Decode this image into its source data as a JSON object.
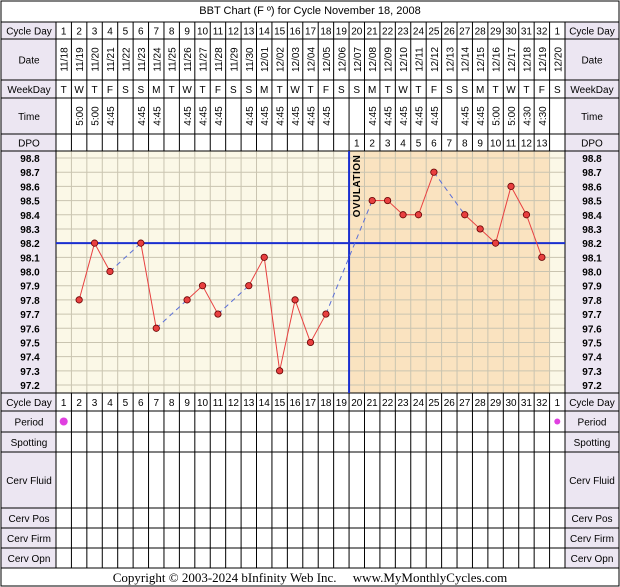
{
  "title": "BBT Chart (F º) for Cycle November 18, 2008",
  "copyright": "Copyright © 2003-2024 bInfinity Web Inc.",
  "website": "www.MyMonthlyCycles.com",
  "row_labels": {
    "cycle_day": "Cycle Day",
    "date": "Date",
    "weekday": "WeekDay",
    "time": "Time",
    "dpo": "DPO",
    "period": "Period",
    "spotting": "Spotting",
    "cerv_fluid": "Cerv Fluid",
    "cerv_pos": "Cerv Pos",
    "cerv_firm": "Cerv Firm",
    "cerv_opn": "Cerv Opn"
  },
  "ovulation_label": "OVULATION",
  "colors": {
    "label_bg": "#ece6f2",
    "pre_ov_bg": "#fbf8e7",
    "post_ov_bg": "#fae3c0",
    "grid": "#c9c4b0",
    "line": "#e84040",
    "dash": "#5a6fd8",
    "coverline": "#1a2fd0",
    "period_dot": "#e040e0"
  },
  "chart_data": {
    "type": "line",
    "title": "BBT Chart (F º) for Cycle November 18, 2008",
    "cycle_days": [
      "1",
      "2",
      "3",
      "4",
      "5",
      "6",
      "7",
      "8",
      "9",
      "10",
      "11",
      "12",
      "13",
      "14",
      "15",
      "16",
      "17",
      "18",
      "19",
      "20",
      "21",
      "22",
      "23",
      "24",
      "25",
      "26",
      "27",
      "28",
      "29",
      "30",
      "31",
      "32",
      "1"
    ],
    "dates": [
      "11/18",
      "11/19",
      "11/20",
      "11/21",
      "11/22",
      "11/23",
      "11/24",
      "11/25",
      "11/26",
      "11/27",
      "11/28",
      "11/29",
      "11/30",
      "12/01",
      "12/02",
      "12/03",
      "12/04",
      "12/05",
      "12/06",
      "12/07",
      "12/08",
      "12/09",
      "12/10",
      "12/11",
      "12/12",
      "12/13",
      "12/14",
      "12/15",
      "12/16",
      "12/17",
      "12/18",
      "12/19",
      "12/20"
    ],
    "weekdays": [
      "T",
      "W",
      "T",
      "F",
      "S",
      "S",
      "M",
      "T",
      "W",
      "T",
      "F",
      "S",
      "S",
      "M",
      "T",
      "W",
      "T",
      "F",
      "S",
      "S",
      "M",
      "T",
      "W",
      "T",
      "F",
      "S",
      "S",
      "M",
      "T",
      "W",
      "T",
      "F",
      "S"
    ],
    "times": [
      "",
      "5:00",
      "5:00",
      "4:45",
      "",
      "4:45",
      "4:45",
      "",
      "4:45",
      "4:45",
      "4:45",
      "",
      "4:45",
      "4:45",
      "4:45",
      "4:45",
      "4:45",
      "4:45",
      "",
      "",
      "4:45",
      "4:45",
      "4:45",
      "4:45",
      "4:45",
      "",
      "4:45",
      "4:45",
      "5:00",
      "5:00",
      "4:30",
      "4:30",
      ""
    ],
    "dpo": [
      "",
      "",
      "",
      "",
      "",
      "",
      "",
      "",
      "",
      "",
      "",
      "",
      "",
      "",
      "",
      "",
      "",
      "",
      "",
      "1",
      "2",
      "3",
      "4",
      "5",
      "6",
      "7",
      "8",
      "9",
      "10",
      "11",
      "12",
      "13",
      ""
    ],
    "temps": [
      null,
      97.8,
      98.2,
      98.0,
      null,
      98.2,
      97.6,
      null,
      97.8,
      97.9,
      97.7,
      null,
      97.9,
      98.1,
      97.3,
      97.8,
      97.5,
      97.7,
      null,
      null,
      98.5,
      98.5,
      98.4,
      98.4,
      98.7,
      null,
      98.4,
      98.3,
      98.2,
      98.6,
      98.4,
      98.1,
      null
    ],
    "y_ticks": [
      "98.8",
      "98.7",
      "98.6",
      "98.5",
      "98.4",
      "98.3",
      "98.2",
      "98.1",
      "98.0",
      "97.9",
      "97.8",
      "97.7",
      "97.6",
      "97.5",
      "97.4",
      "97.3",
      "97.2"
    ],
    "ylim": [
      97.2,
      98.8
    ],
    "coverline": 98.2,
    "ovulation_day": 19,
    "period_days": [
      1,
      33
    ]
  }
}
